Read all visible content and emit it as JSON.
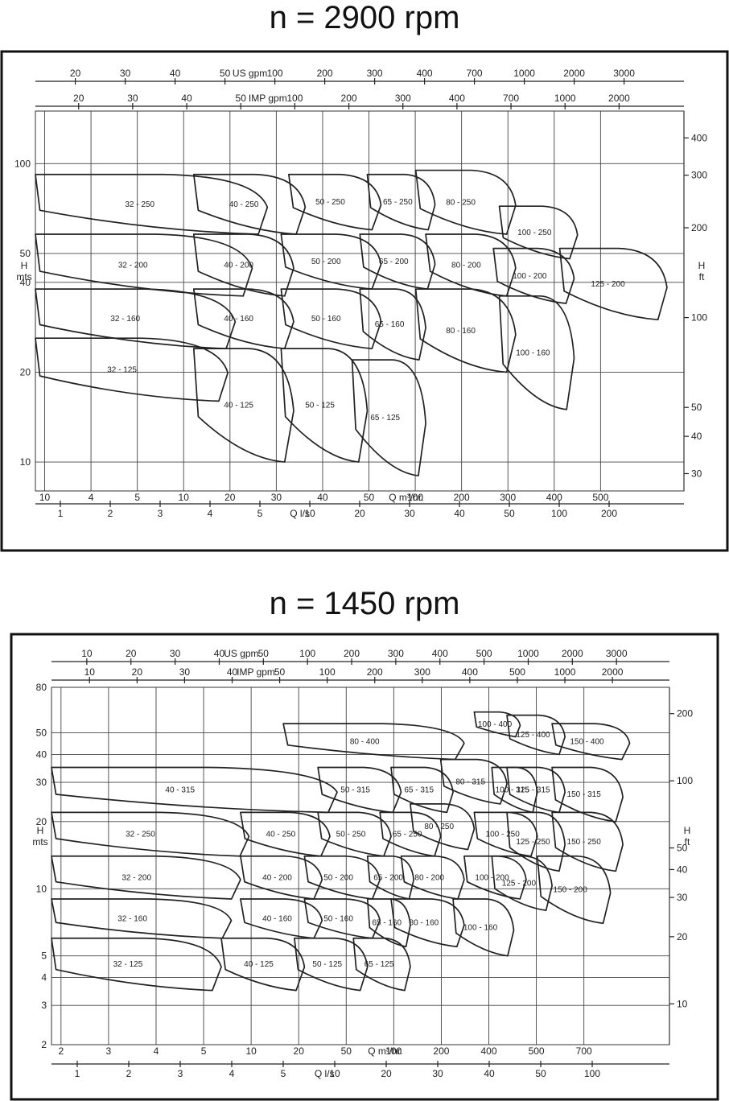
{
  "charts": [
    {
      "title": "n = 2900 rpm",
      "chart_data": {
        "type": "pump-selection-chart",
        "speed_rpm": 2900,
        "xlim_m3h": [
          10,
          900
        ],
        "ylim_m": [
          8,
          150
        ],
        "x_scale": "log",
        "y_scale": "log",
        "grid": true,
        "axes": {
          "q_m3h": {
            "label": "Q m³/hr.",
            "ticks": [
              "10",
              "4",
              "5",
              "10",
              "20",
              "30",
              "40",
              "50",
              "100",
              "200",
              "300",
              "400",
              "500"
            ]
          },
          "q_ls": {
            "label": "Q l/s",
            "ticks": [
              "1",
              "2",
              "3",
              "4",
              "5",
              "10",
              "20",
              "30",
              "40",
              "50",
              "100",
              "200"
            ]
          },
          "us_gpm": {
            "label": "US gpm",
            "ticks": [
              "20",
              "30",
              "40",
              "50",
              "100",
              "200",
              "300",
              "400",
              "700",
              "1000",
              "2000",
              "3000"
            ]
          },
          "imp_gpm": {
            "label": "IMP gpm",
            "ticks": [
              "20",
              "30",
              "40",
              "50",
              "100",
              "200",
              "300",
              "400",
              "700",
              "1000",
              "2000"
            ]
          },
          "h_m": {
            "label": "H mts",
            "label_lines": [
              "H",
              "mts"
            ],
            "ticks": [
              "100",
              "50",
              "40",
              "20",
              "10"
            ]
          },
          "h_ft": {
            "label": "H ft",
            "label_lines": [
              "H",
              "ft"
            ],
            "ticks": [
              "400",
              "300",
              "200",
              "100",
              "50",
              "40",
              "30"
            ]
          }
        },
        "pumps": [
          {
            "label": "32 - 250",
            "q_min": 10,
            "q_max": 50,
            "h_max": 92,
            "h_min": 58
          },
          {
            "label": "40 - 250",
            "q_min": 30,
            "q_max": 65,
            "h_max": 92,
            "h_min": 58
          },
          {
            "label": "50 - 250",
            "q_min": 58,
            "q_max": 110,
            "h_max": 92,
            "h_min": 60
          },
          {
            "label": "65 - 250",
            "q_min": 100,
            "q_max": 160,
            "h_max": 92,
            "h_min": 60
          },
          {
            "label": "80 - 250",
            "q_min": 140,
            "q_max": 280,
            "h_max": 95,
            "h_min": 58
          },
          {
            "label": "100 - 250",
            "q_min": 250,
            "q_max": 430,
            "h_max": 72,
            "h_min": 48
          },
          {
            "label": "32 - 200",
            "q_min": 10,
            "q_max": 45,
            "h_max": 58,
            "h_min": 36
          },
          {
            "label": "40 - 200",
            "q_min": 30,
            "q_max": 60,
            "h_max": 58,
            "h_min": 36
          },
          {
            "label": "50 - 200",
            "q_min": 55,
            "q_max": 110,
            "h_max": 58,
            "h_min": 38
          },
          {
            "label": "65 - 200",
            "q_min": 95,
            "q_max": 160,
            "h_max": 58,
            "h_min": 38
          },
          {
            "label": "80 - 200",
            "q_min": 150,
            "q_max": 280,
            "h_max": 58,
            "h_min": 36
          },
          {
            "label": "100 - 200",
            "q_min": 240,
            "q_max": 420,
            "h_max": 52,
            "h_min": 34
          },
          {
            "label": "125 - 200",
            "q_min": 380,
            "q_max": 800,
            "h_max": 52,
            "h_min": 30
          },
          {
            "label": "32 - 160",
            "q_min": 10,
            "q_max": 40,
            "h_max": 38,
            "h_min": 24
          },
          {
            "label": "40 - 160",
            "q_min": 30,
            "q_max": 60,
            "h_max": 38,
            "h_min": 24
          },
          {
            "label": "50 - 160",
            "q_min": 55,
            "q_max": 110,
            "h_max": 38,
            "h_min": 24
          },
          {
            "label": "65 - 160",
            "q_min": 95,
            "q_max": 150,
            "h_max": 38,
            "h_min": 22
          },
          {
            "label": "80 - 160",
            "q_min": 140,
            "q_max": 280,
            "h_max": 38,
            "h_min": 20
          },
          {
            "label": "100 - 160",
            "q_min": 250,
            "q_max": 420,
            "h_max": 36,
            "h_min": 15
          },
          {
            "label": "32 - 125",
            "q_min": 10,
            "q_max": 38,
            "h_max": 26,
            "h_min": 16
          },
          {
            "label": "40 - 125",
            "q_min": 30,
            "q_max": 60,
            "h_max": 24,
            "h_min": 10
          },
          {
            "label": "50 - 125",
            "q_min": 55,
            "q_max": 100,
            "h_max": 24,
            "h_min": 10
          },
          {
            "label": "65 - 125",
            "q_min": 90,
            "q_max": 150,
            "h_max": 22,
            "h_min": 9
          }
        ]
      }
    },
    {
      "title": "n = 1450 rpm",
      "chart_data": {
        "type": "pump-selection-chart",
        "speed_rpm": 1450,
        "xlim_m3h": [
          2,
          700
        ],
        "ylim_m": [
          2,
          80
        ],
        "x_scale": "log",
        "y_scale": "log",
        "grid": true,
        "axes": {
          "q_m3h": {
            "label": "Q m³/hr.",
            "ticks": [
              "2",
              "3",
              "4",
              "5",
              "10",
              "20",
              "50",
              "100",
              "200",
              "400",
              "500",
              "700"
            ]
          },
          "q_ls": {
            "label": "Q l/s",
            "ticks": [
              "1",
              "2",
              "3",
              "4",
              "5",
              "10",
              "20",
              "30",
              "40",
              "50",
              "100"
            ]
          },
          "us_gpm": {
            "label": "US gpm",
            "ticks": [
              "10",
              "20",
              "30",
              "40",
              "50",
              "100",
              "200",
              "300",
              "400",
              "500",
              "1000",
              "2000",
              "3000"
            ]
          },
          "imp_gpm": {
            "label": "IMP gpm",
            "ticks": [
              "10",
              "20",
              "30",
              "40",
              "50",
              "100",
              "200",
              "300",
              "400",
              "500",
              "1000",
              "2000"
            ]
          },
          "h_m": {
            "label": "H mts",
            "label_lines": [
              "H",
              "mts"
            ],
            "ticks": [
              "80",
              "50",
              "40",
              "30",
              "20",
              "10",
              "5",
              "4",
              "3",
              "2"
            ]
          },
          "h_ft": {
            "label": "H ft",
            "label_lines": [
              "H",
              "ft"
            ],
            "ticks": [
              "200",
              "100",
              "50",
              "40",
              "30",
              "20",
              "10"
            ]
          }
        },
        "pumps": [
          {
            "label": "100 - 400",
            "q_min": 110,
            "q_max": 170,
            "h_max": 62,
            "h_min": 48
          },
          {
            "label": "80 - 400",
            "q_min": 18,
            "q_max": 100,
            "h_max": 55,
            "h_min": 38
          },
          {
            "label": "125 - 400",
            "q_min": 150,
            "q_max": 260,
            "h_max": 60,
            "h_min": 40
          },
          {
            "label": "150 - 400",
            "q_min": 230,
            "q_max": 480,
            "h_max": 55,
            "h_min": 38
          },
          {
            "label": "40 - 315",
            "q_min": 2,
            "q_max": 30,
            "h_max": 35,
            "h_min": 22
          },
          {
            "label": "50 - 315",
            "q_min": 25,
            "q_max": 55,
            "h_max": 35,
            "h_min": 22
          },
          {
            "label": "65 - 315",
            "q_min": 50,
            "q_max": 90,
            "h_max": 35,
            "h_min": 22
          },
          {
            "label": "80 - 315",
            "q_min": 80,
            "q_max": 150,
            "h_max": 38,
            "h_min": 24
          },
          {
            "label": "100 - 315",
            "q_min": 130,
            "q_max": 200,
            "h_max": 35,
            "h_min": 22
          },
          {
            "label": "125 - 315",
            "q_min": 150,
            "q_max": 260,
            "h_max": 35,
            "h_min": 22
          },
          {
            "label": "150 - 315",
            "q_min": 230,
            "q_max": 450,
            "h_max": 35,
            "h_min": 20
          },
          {
            "label": "32 - 250",
            "q_min": 2,
            "q_max": 13,
            "h_max": 22,
            "h_min": 14
          },
          {
            "label": "40 - 250",
            "q_min": 12,
            "q_max": 28,
            "h_max": 22,
            "h_min": 14
          },
          {
            "label": "50 - 250",
            "q_min": 25,
            "q_max": 50,
            "h_max": 22,
            "h_min": 14
          },
          {
            "label": "65 - 250",
            "q_min": 45,
            "q_max": 80,
            "h_max": 22,
            "h_min": 14
          },
          {
            "label": "80 - 250",
            "q_min": 60,
            "q_max": 110,
            "h_max": 24,
            "h_min": 15
          },
          {
            "label": "100 - 250",
            "q_min": 110,
            "q_max": 200,
            "h_max": 22,
            "h_min": 14
          },
          {
            "label": "125 - 250",
            "q_min": 150,
            "q_max": 260,
            "h_max": 22,
            "h_min": 12
          },
          {
            "label": "150 - 250",
            "q_min": 230,
            "q_max": 450,
            "h_max": 22,
            "h_min": 12
          },
          {
            "label": "32 - 200",
            "q_min": 2,
            "q_max": 12,
            "h_max": 14,
            "h_min": 9
          },
          {
            "label": "40 - 200",
            "q_min": 12,
            "q_max": 26,
            "h_max": 14,
            "h_min": 9
          },
          {
            "label": "50 - 200",
            "q_min": 22,
            "q_max": 45,
            "h_max": 14,
            "h_min": 9
          },
          {
            "label": "65 - 200",
            "q_min": 40,
            "q_max": 62,
            "h_max": 14,
            "h_min": 9
          },
          {
            "label": "80 - 200",
            "q_min": 55,
            "q_max": 100,
            "h_max": 14,
            "h_min": 9
          },
          {
            "label": "100 - 200",
            "q_min": 100,
            "q_max": 180,
            "h_max": 14,
            "h_min": 9
          },
          {
            "label": "125 - 200",
            "q_min": 130,
            "q_max": 230,
            "h_max": 14,
            "h_min": 8
          },
          {
            "label": "150 - 200",
            "q_min": 200,
            "q_max": 400,
            "h_max": 14,
            "h_min": 7
          },
          {
            "label": "32 - 160",
            "q_min": 2,
            "q_max": 11,
            "h_max": 9,
            "h_min": 6
          },
          {
            "label": "40 - 160",
            "q_min": 12,
            "q_max": 26,
            "h_max": 9,
            "h_min": 6
          },
          {
            "label": "50 - 160",
            "q_min": 22,
            "q_max": 45,
            "h_max": 9,
            "h_min": 6
          },
          {
            "label": "65 - 160",
            "q_min": 40,
            "q_max": 60,
            "h_max": 9,
            "h_min": 5.5
          },
          {
            "label": "80 - 160",
            "q_min": 50,
            "q_max": 100,
            "h_max": 9,
            "h_min": 5.5
          },
          {
            "label": "100 - 160",
            "q_min": 90,
            "q_max": 160,
            "h_max": 9,
            "h_min": 5
          },
          {
            "label": "32 - 125",
            "q_min": 2,
            "q_max": 10,
            "h_max": 6,
            "h_min": 3.5
          },
          {
            "label": "40 - 125",
            "q_min": 10,
            "q_max": 22,
            "h_max": 6,
            "h_min": 3.5
          },
          {
            "label": "50 - 125",
            "q_min": 20,
            "q_max": 40,
            "h_max": 6,
            "h_min": 3.5
          },
          {
            "label": "65 - 125",
            "q_min": 35,
            "q_max": 60,
            "h_max": 6,
            "h_min": 3.5
          }
        ]
      }
    }
  ]
}
